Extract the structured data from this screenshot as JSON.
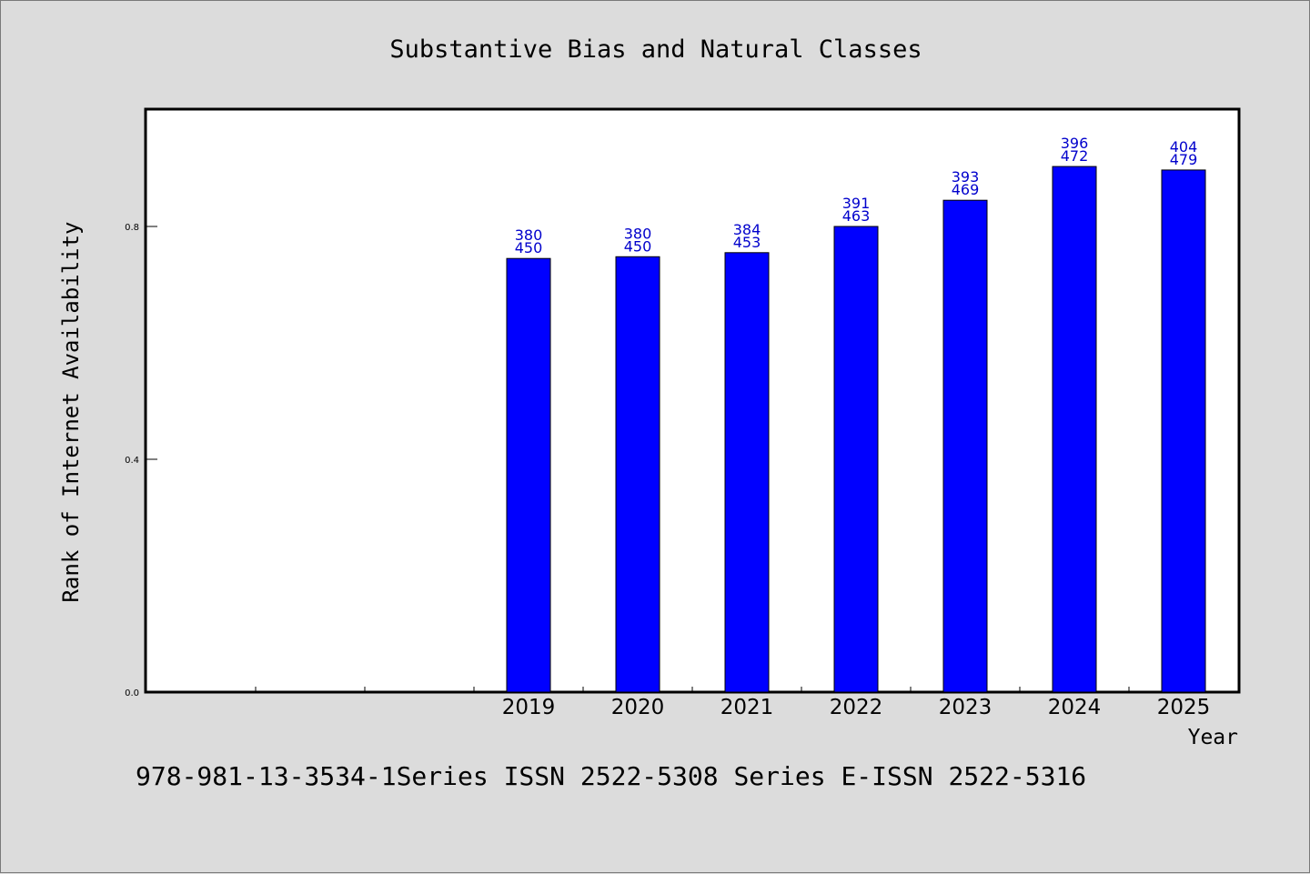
{
  "chart_data": {
    "type": "bar",
    "title": "Substantive Bias and Natural Classes",
    "xlabel": "Year",
    "ylabel": "Rank of Internet Availability",
    "categories": [
      "2019",
      "2020",
      "2021",
      "2022",
      "2023",
      "2024",
      "2025"
    ],
    "values": [
      0.745,
      0.748,
      0.755,
      0.8,
      0.845,
      0.903,
      0.897
    ],
    "data_labels": [
      [
        "380",
        "450"
      ],
      [
        "380",
        "450"
      ],
      [
        "384",
        "453"
      ],
      [
        "391",
        "463"
      ],
      [
        "393",
        "469"
      ],
      [
        "396",
        "472"
      ],
      [
        "404",
        "479"
      ]
    ],
    "yticks": [
      "0.0",
      "0.4",
      "0.8"
    ],
    "ytick_values": [
      0.0,
      0.4,
      0.8
    ],
    "ylim": [
      0,
      1.0
    ],
    "empty_leading_slots": 3,
    "grid": false,
    "legend": "none",
    "bar_color": "#0000ff",
    "label_color": "#0000cc",
    "background_color": "#dcdcdc",
    "plot_background": "#ffffff"
  },
  "footer": {
    "text": "978-981-13-3534-1Series ISSN 2522-5308 Series E-ISSN 2522-5316"
  }
}
